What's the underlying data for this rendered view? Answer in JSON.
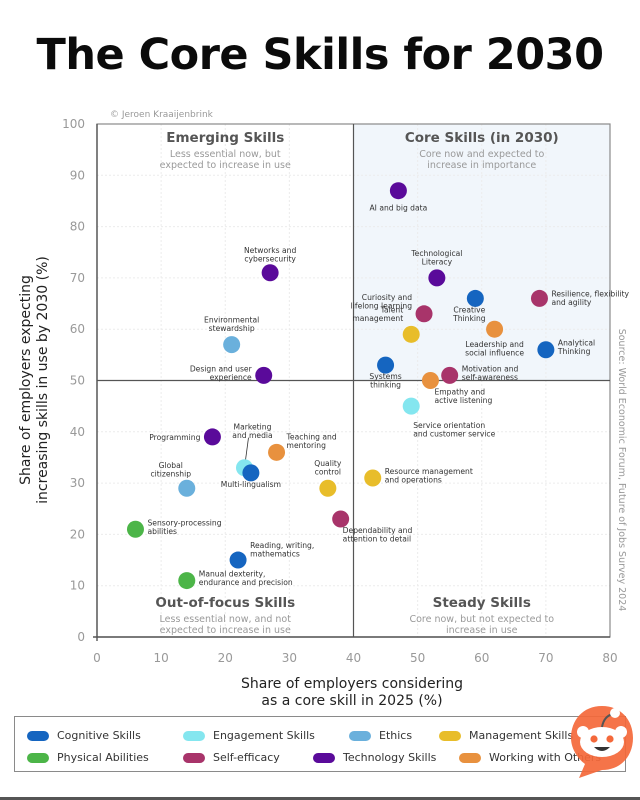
{
  "title": "The Core Skills for 2030",
  "credit": "© Jeroen Kraaijenbrink",
  "source": "Source: World Economic Forum, Future of Jobs Survey 2024",
  "colors": {
    "Cognitive Skills": "#1565c0",
    "Engagement Skills": "#84e6ef",
    "Ethics": "#6ab0dc",
    "Management Skills": "#e8bd2a",
    "Physical Abilities": "#4cb548",
    "Self-efficacy": "#a8346a",
    "Technology Skills": "#5a0a9a",
    "Working with Others": "#e8913e"
  },
  "chart_data": {
    "type": "scatter",
    "title": "The Core Skills for 2030",
    "xlabel": "Share of employers considering as a core skill in 2025 (%)",
    "xlabel_lines": [
      "Share of employers considering",
      "as a core skill in 2025 (%)"
    ],
    "ylabel": "Share of employers expecting increasing skills in use by 2030 (%)",
    "ylabel_lines": [
      "Share of employers expecting",
      "increasing skills in use by 2030 (%)"
    ],
    "xlim": [
      0,
      80
    ],
    "ylim": [
      0,
      100
    ],
    "xticks": [
      0,
      10,
      20,
      30,
      40,
      50,
      60,
      70,
      80
    ],
    "yticks": [
      0,
      10,
      20,
      30,
      40,
      50,
      60,
      70,
      80,
      90,
      100
    ],
    "grid": true,
    "quadrant_dividers": {
      "x": 40,
      "y": 50
    },
    "quadrants": [
      {
        "name": "Emerging Skills",
        "subtitle": [
          "Less essential now, but",
          "expected to increase in use"
        ],
        "position": "top-left"
      },
      {
        "name": "Core Skills (in 2030)",
        "subtitle": [
          "Core now and expected to",
          "increase in importance"
        ],
        "position": "top-right"
      },
      {
        "name": "Out-of-focus Skills",
        "subtitle": [
          "Less essential now, and not",
          "expected to increase in use"
        ],
        "position": "bottom-left"
      },
      {
        "name": "Steady Skills",
        "subtitle": [
          "Core now, but not expected to",
          "increase in use"
        ],
        "position": "bottom-right"
      }
    ],
    "legend": {
      "placement": "bottom",
      "entries": [
        "Cognitive Skills",
        "Engagement Skills",
        "Ethics",
        "Management Skills",
        "Physical Abilities",
        "Self-efficacy",
        "Technology Skills",
        "Working with Others"
      ]
    },
    "points": [
      {
        "label": [
          "AI and big data"
        ],
        "category": "Technology Skills",
        "x": 47,
        "y": 87
      },
      {
        "label": [
          "Networks and",
          "cybersecurity"
        ],
        "category": "Technology Skills",
        "x": 27,
        "y": 71
      },
      {
        "label": [
          "Technological",
          "Literacy"
        ],
        "category": "Technology Skills",
        "x": 53,
        "y": 70
      },
      {
        "label": [
          "Resilience, flexibility",
          "and agility"
        ],
        "category": "Self-efficacy",
        "x": 69,
        "y": 66
      },
      {
        "label": [
          "Creative",
          "Thinking"
        ],
        "category": "Cognitive Skills",
        "x": 59,
        "y": 66
      },
      {
        "label": [
          "Curiosity and",
          "lifelong learning"
        ],
        "category": "Self-efficacy",
        "x": 51,
        "y": 63
      },
      {
        "label": [
          "Talent",
          "management"
        ],
        "category": "Management Skills",
        "x": 49,
        "y": 59
      },
      {
        "label": [
          "Leadership and",
          "social influence"
        ],
        "category": "Working with Others",
        "x": 62,
        "y": 60
      },
      {
        "label": [
          "Environmental",
          "stewardship"
        ],
        "category": "Ethics",
        "x": 21,
        "y": 57
      },
      {
        "label": [
          "Analytical",
          "Thinking"
        ],
        "category": "Cognitive Skills",
        "x": 70,
        "y": 56
      },
      {
        "label": [
          "Systems",
          "thinking"
        ],
        "category": "Cognitive Skills",
        "x": 45,
        "y": 53
      },
      {
        "label": [
          "Design and user",
          "experience"
        ],
        "category": "Technology Skills",
        "x": 26,
        "y": 51
      },
      {
        "label": [
          "Motivation and",
          "self-awareness"
        ],
        "category": "Self-efficacy",
        "x": 55,
        "y": 51
      },
      {
        "label": [
          "Empathy and",
          "active listening"
        ],
        "category": "Working with Others",
        "x": 52,
        "y": 50
      },
      {
        "label": [
          "Service orientation",
          "and customer service"
        ],
        "category": "Engagement Skills",
        "x": 49,
        "y": 45
      },
      {
        "label": [
          "Programming"
        ],
        "category": "Technology Skills",
        "x": 18,
        "y": 39
      },
      {
        "label": [
          "Teaching and",
          "mentoring"
        ],
        "category": "Working with Others",
        "x": 28,
        "y": 36
      },
      {
        "label": [
          "Marketing",
          "and media"
        ],
        "category": "Engagement Skills",
        "x": 23,
        "y": 33
      },
      {
        "label": [
          "Multi-lingualism"
        ],
        "category": "Cognitive Skills",
        "x": 24,
        "y": 32
      },
      {
        "label": [
          "Resource management",
          "and operations"
        ],
        "category": "Management Skills",
        "x": 43,
        "y": 31
      },
      {
        "label": [
          "Global",
          "citizenship"
        ],
        "category": "Ethics",
        "x": 14,
        "y": 29
      },
      {
        "label": [
          "Quality",
          "control"
        ],
        "category": "Management Skills",
        "x": 36,
        "y": 29
      },
      {
        "label": [
          "Dependability and",
          "attention to detail"
        ],
        "category": "Self-efficacy",
        "x": 38,
        "y": 23
      },
      {
        "label": [
          "Sensory-processing",
          "abilities"
        ],
        "category": "Physical Abilities",
        "x": 6,
        "y": 21
      },
      {
        "label": [
          "Reading, writing,",
          "mathematics"
        ],
        "category": "Cognitive Skills",
        "x": 22,
        "y": 15
      },
      {
        "label": [
          "Manual dexterity,",
          "endurance and precision"
        ],
        "category": "Physical Abilities",
        "x": 14,
        "y": 11
      }
    ]
  }
}
